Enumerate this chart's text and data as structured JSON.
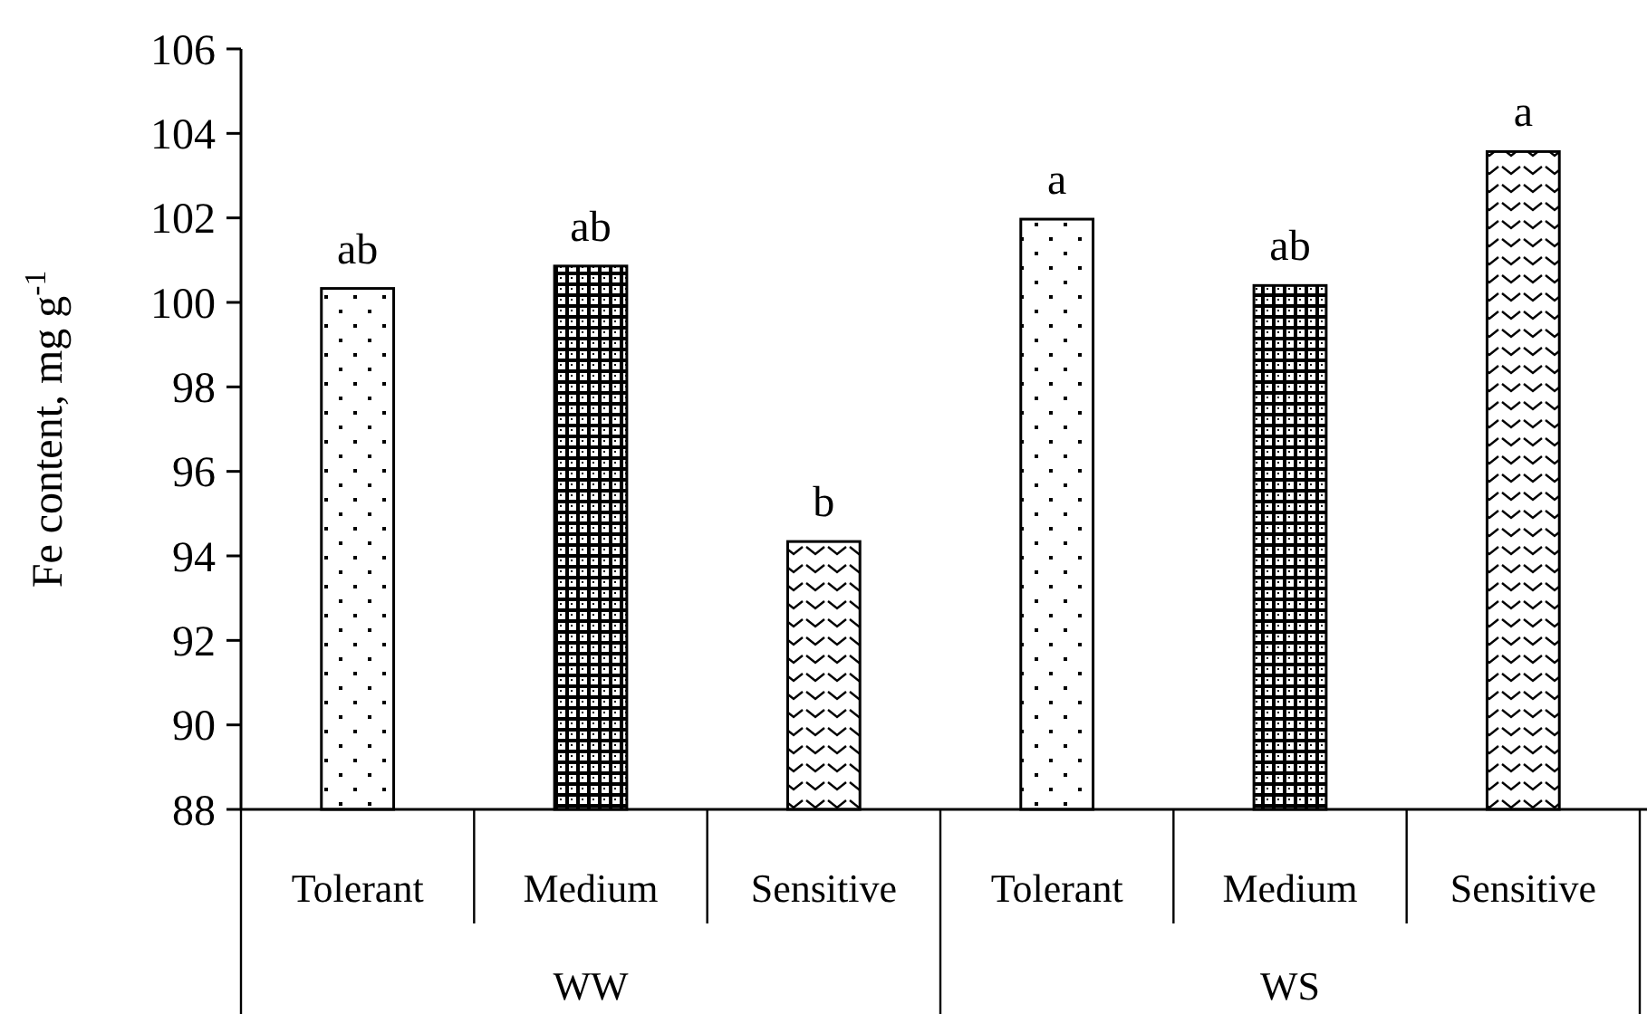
{
  "chart_data": {
    "type": "bar",
    "ylabel": "Fe content, mg g$^{-1}$",
    "categories": [
      "Tolerant",
      "Medium",
      "Sensitive",
      "Tolerant",
      "Medium",
      "Sensitive"
    ],
    "values": [
      100.33,
      100.86,
      94.34,
      101.97,
      100.4,
      103.57
    ],
    "colors": [
      "#000000",
      "#000000",
      "#000000",
      "#000000",
      "#000000",
      "#000000"
    ],
    "value_labels": [
      "ab",
      "ab",
      "b",
      "a",
      "ab",
      "a"
    ],
    "annotations": [
      "WW",
      "WS"
    ],
    "ylim": [
      88,
      106
    ],
    "yticks": [
      88,
      90,
      92,
      94,
      96,
      98,
      100,
      102,
      104,
      106
    ],
    "grid": false
  }
}
